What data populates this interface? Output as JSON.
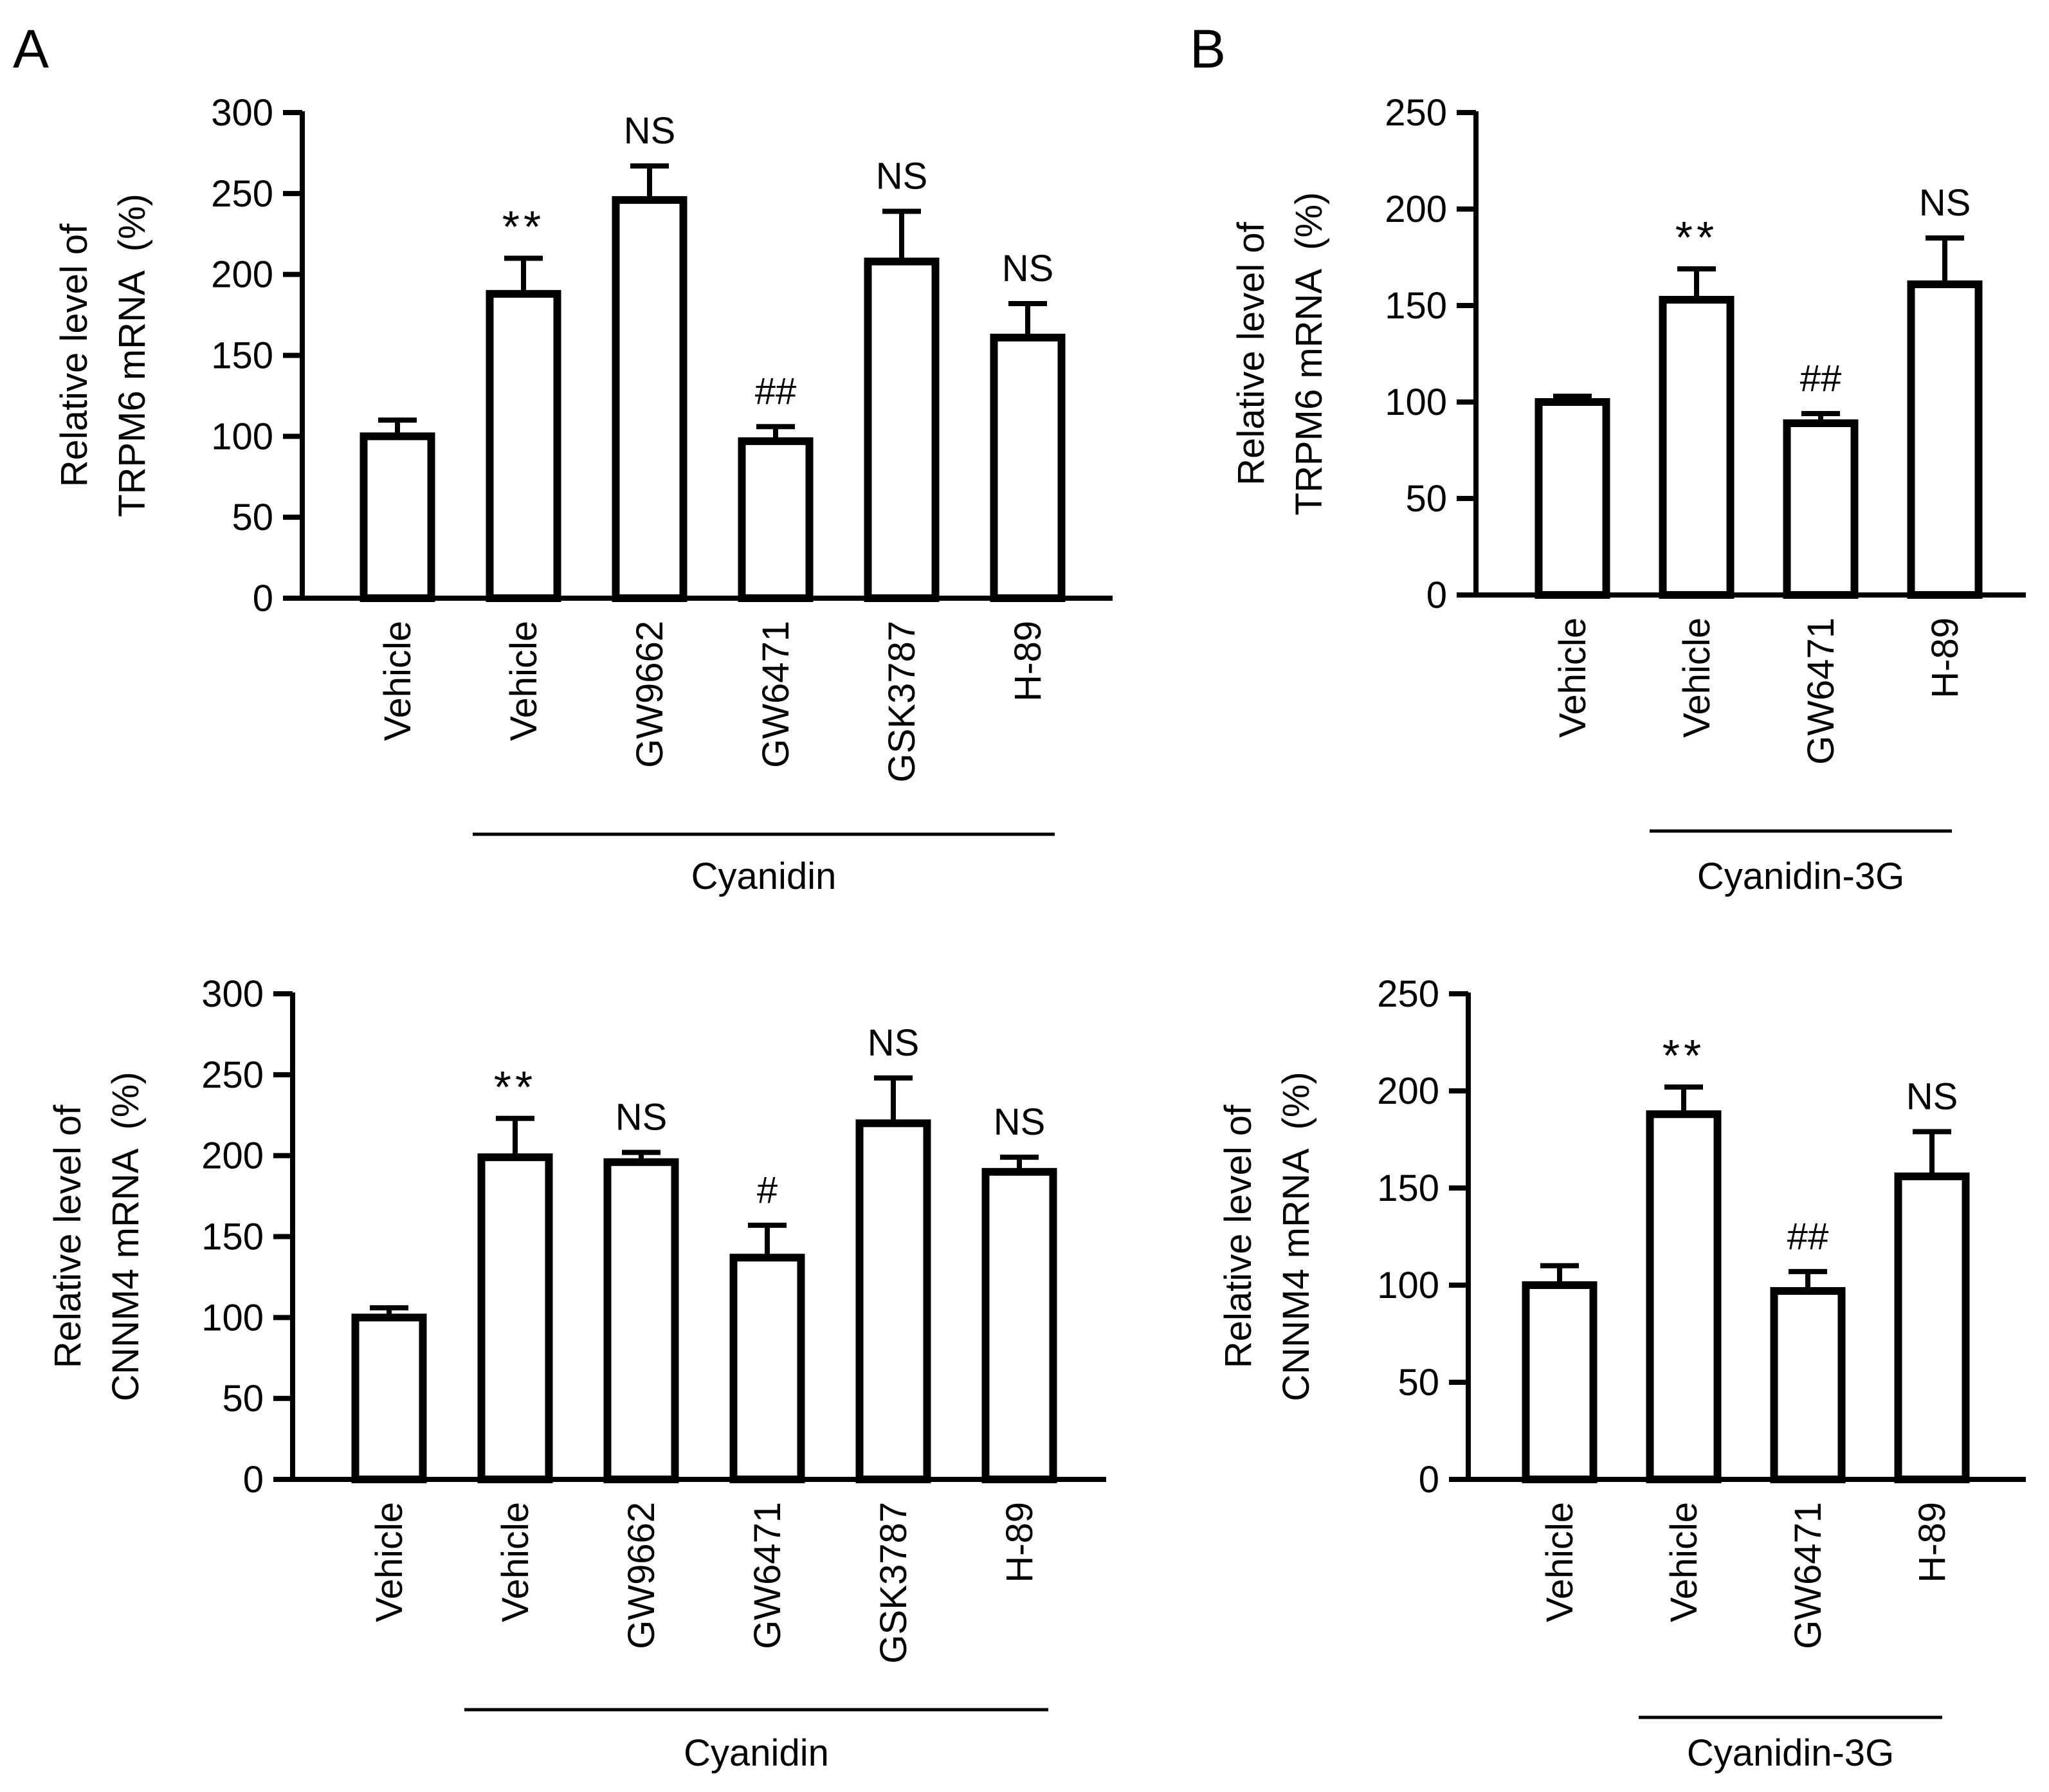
{
  "panel_labels": [
    "A",
    "B"
  ],
  "chart_data": [
    {
      "type": "bar",
      "panel": "A",
      "ylabel_lines": [
        "Relative level of",
        "TRPM6 mRNA  (%)"
      ],
      "ylim": [
        0,
        300
      ],
      "yticks": [
        0,
        50,
        100,
        150,
        200,
        250,
        300
      ],
      "categories": [
        "Vehicle",
        "Vehicle",
        "GW9662",
        "GW6471",
        "GSK3787",
        "H-89"
      ],
      "values": [
        100,
        188,
        246,
        97,
        208,
        161
      ],
      "errors": [
        10,
        22,
        21,
        9,
        31,
        21
      ],
      "annotations": [
        "",
        "**",
        "NS",
        "##",
        "NS",
        "NS"
      ],
      "group_label": "Cyanidin",
      "group_span": [
        1,
        5
      ]
    },
    {
      "type": "bar",
      "panel": "B",
      "ylabel_lines": [
        "Relative level of",
        "TRPM6 mRNA  (%)"
      ],
      "ylim": [
        0,
        250
      ],
      "yticks": [
        0,
        50,
        100,
        150,
        200,
        250
      ],
      "categories": [
        "Vehicle",
        "Vehicle",
        "GW6471",
        "H-89"
      ],
      "values": [
        100,
        153,
        89,
        161
      ],
      "errors": [
        3,
        16,
        5,
        24
      ],
      "annotations": [
        "",
        "**",
        "##",
        "NS"
      ],
      "group_label": "Cyanidin-3G",
      "group_span": [
        1,
        3
      ]
    },
    {
      "type": "bar",
      "panel": "A",
      "ylabel_lines": [
        "Relative level of",
        "CNNM4 mRNA  (%)"
      ],
      "ylim": [
        0,
        300
      ],
      "yticks": [
        0,
        50,
        100,
        150,
        200,
        250,
        300
      ],
      "categories": [
        "Vehicle",
        "Vehicle",
        "GW9662",
        "GW6471",
        "GSK3787",
        "H-89"
      ],
      "values": [
        100,
        199,
        196,
        137,
        220,
        190
      ],
      "errors": [
        6,
        24,
        6,
        20,
        28,
        9
      ],
      "annotations": [
        "",
        "**",
        "NS",
        "#",
        "NS",
        "NS"
      ],
      "group_label": "Cyanidin",
      "group_span": [
        1,
        5
      ]
    },
    {
      "type": "bar",
      "panel": "B",
      "ylabel_lines": [
        "Relative level of",
        "CNNM4 mRNA  (%)"
      ],
      "ylim": [
        0,
        250
      ],
      "yticks": [
        0,
        50,
        100,
        150,
        200,
        250
      ],
      "categories": [
        "Vehicle",
        "Vehicle",
        "GW6471",
        "H-89"
      ],
      "values": [
        100,
        188,
        97,
        156
      ],
      "errors": [
        10,
        14,
        10,
        23
      ],
      "annotations": [
        "",
        "**",
        "##",
        "NS"
      ],
      "group_label": "Cyanidin-3G",
      "group_span": [
        1,
        3
      ]
    }
  ]
}
